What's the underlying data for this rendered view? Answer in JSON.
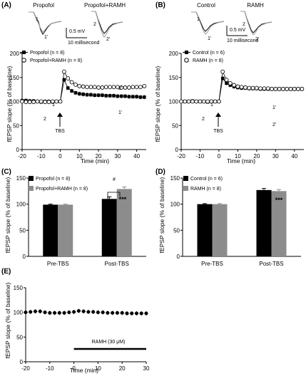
{
  "panel_labels": [
    "(A)",
    "(B)",
    "(C)",
    "(D)",
    "(E)"
  ],
  "traces": {
    "A": {
      "conditions": [
        "Propofol",
        "Propofol+RAMH"
      ],
      "left_labels": [
        "1",
        "1'"
      ],
      "right_labels": [
        "2",
        "2'"
      ],
      "scale_v": "0.5 mV",
      "scale_t": "10 millisecond"
    },
    "B": {
      "conditions": [
        "Control",
        "RAMH"
      ],
      "left_labels": [
        "1",
        "1'"
      ],
      "right_labels": [
        "2",
        "2'"
      ],
      "scale_v": "0.5 mV",
      "scale_t": "10 millisecond"
    }
  },
  "annotations": {
    "tbs": "TBS",
    "A_mark_1": "1",
    "A_mark_2": "2",
    "A_mark_2p": "2'",
    "A_mark_1p": "1'",
    "B_mark_1": "1",
    "B_mark_2": "2",
    "B_mark_1p": "1'",
    "B_mark_2p": "2'",
    "C_sig_left": "**",
    "C_sig_right": "***",
    "C_bracket": "#",
    "D_sig_left": "***",
    "D_sig_right": "***",
    "E_drug": "RAMH (30 μM)"
  },
  "colors": {
    "black": "#000000",
    "grey": "#8c8c8c",
    "light_grey": "#b8b8b8"
  },
  "chart_data": [
    {
      "id": "A",
      "type": "line",
      "xlabel": "Time (min)",
      "ylabel": "fEPSP slope (% of baseline)",
      "xlim": [
        -20,
        45
      ],
      "ylim": [
        0,
        200
      ],
      "xticks": [
        -20,
        -10,
        0,
        10,
        20,
        30,
        40
      ],
      "yticks": [
        0,
        50,
        100,
        150,
        200
      ],
      "legend": "top-left",
      "series": [
        {
          "name": "Propofol (n = 8)",
          "marker": "filled-square",
          "x": [
            -20,
            -18,
            -16,
            -14,
            -12,
            -10,
            -8,
            -6,
            -4,
            -2,
            0,
            2,
            4,
            6,
            8,
            10,
            12,
            14,
            16,
            18,
            20,
            22,
            24,
            26,
            28,
            30,
            32,
            34,
            36,
            38,
            40,
            42,
            44
          ],
          "y": [
            102,
            102,
            101,
            101,
            100,
            99,
            100,
            100,
            99,
            100,
            100,
            145,
            128,
            122,
            118,
            116,
            115,
            114,
            114,
            113,
            113,
            113,
            112,
            112,
            112,
            111,
            111,
            111,
            110,
            110,
            110,
            109,
            109
          ]
        },
        {
          "name": "Propofol+RAMH (n = 8)",
          "marker": "open-circle",
          "x": [
            -20,
            -18,
            -16,
            -14,
            -12,
            -10,
            -8,
            -6,
            -4,
            -2,
            0,
            2,
            4,
            6,
            8,
            10,
            12,
            14,
            16,
            18,
            20,
            22,
            24,
            26,
            28,
            30,
            32,
            34,
            36,
            38,
            40,
            42,
            44
          ],
          "y": [
            100,
            99,
            99,
            99,
            100,
            100,
            99,
            99,
            100,
            100,
            100,
            162,
            148,
            140,
            135,
            132,
            131,
            130,
            130,
            130,
            129,
            129,
            130,
            130,
            130,
            130,
            129,
            129,
            129,
            130,
            130,
            130,
            132
          ]
        }
      ]
    },
    {
      "id": "B",
      "type": "line",
      "xlabel": "Time (min)",
      "ylabel": "fEPSP slope (% of baseline)",
      "xlim": [
        -20,
        45
      ],
      "ylim": [
        0,
        200
      ],
      "xticks": [
        -20,
        -10,
        0,
        10,
        20,
        30,
        40
      ],
      "yticks": [
        0,
        50,
        100,
        150,
        200
      ],
      "legend": "top-left",
      "series": [
        {
          "name": "Control (n = 6)",
          "marker": "filled-square",
          "x": [
            -20,
            -18,
            -16,
            -14,
            -12,
            -10,
            -8,
            -6,
            -4,
            -2,
            0,
            2,
            4,
            6,
            8,
            10,
            12,
            14,
            16,
            18,
            20,
            22,
            24,
            26,
            28,
            30,
            32,
            34,
            36,
            38,
            40,
            42,
            44
          ],
          "y": [
            100,
            100,
            100,
            101,
            100,
            100,
            100,
            99,
            100,
            100,
            100,
            148,
            138,
            134,
            131,
            129,
            128,
            128,
            127,
            127,
            127,
            126,
            126,
            126,
            126,
            126,
            126,
            126,
            126,
            126,
            126,
            126,
            126
          ]
        },
        {
          "name": "RAMH (n = 8)",
          "marker": "open-circle",
          "x": [
            -20,
            -18,
            -16,
            -14,
            -12,
            -10,
            -8,
            -6,
            -4,
            -2,
            0,
            2,
            4,
            6,
            8,
            10,
            12,
            14,
            16,
            18,
            20,
            22,
            24,
            26,
            28,
            30,
            32,
            34,
            36,
            38,
            40,
            42,
            44
          ],
          "y": [
            100,
            100,
            100,
            100,
            100,
            100,
            100,
            100,
            100,
            100,
            100,
            162,
            145,
            138,
            134,
            131,
            130,
            129,
            128,
            128,
            128,
            127,
            127,
            127,
            126,
            126,
            126,
            126,
            126,
            126,
            126,
            126,
            126
          ]
        }
      ]
    },
    {
      "id": "C",
      "type": "bar",
      "ylabel": "fEPSP slope (% of baseline)",
      "categories": [
        "Pre-TBS",
        "Post-TBS"
      ],
      "ylim": [
        0,
        150
      ],
      "yticks": [
        0,
        50,
        100,
        150
      ],
      "legend": "top-left",
      "series": [
        {
          "name": "Propofol (n = 8)",
          "color": "#000000",
          "values": [
            99,
            110
          ],
          "errors": [
            1,
            4
          ]
        },
        {
          "name": "Propofol+RAMH (n = 8)",
          "color": "#8c8c8c",
          "values": [
            99,
            129
          ],
          "errors": [
            1,
            4
          ]
        }
      ]
    },
    {
      "id": "D",
      "type": "bar",
      "ylabel": "fEPSP slope (% of baseline)",
      "categories": [
        "Pre-TBS",
        "Post-TBS"
      ],
      "ylim": [
        0,
        150
      ],
      "yticks": [
        0,
        50,
        100,
        150
      ],
      "legend": "top-left",
      "series": [
        {
          "name": "Control (n = 6)",
          "color": "#000000",
          "values": [
            100,
            127
          ],
          "errors": [
            1,
            3
          ]
        },
        {
          "name": "RAMH (n = 8)",
          "color": "#8c8c8c",
          "values": [
            100,
            125
          ],
          "errors": [
            1,
            3
          ]
        }
      ]
    },
    {
      "id": "E",
      "type": "line",
      "xlabel": "Time (min)",
      "ylabel": "fEPSP slope (% of baseline)",
      "xlim": [
        -20,
        30
      ],
      "ylim": [
        0,
        150
      ],
      "xticks": [
        -20,
        -10,
        0,
        10,
        20,
        30
      ],
      "yticks": [
        0,
        50,
        100,
        150
      ],
      "drug_bar": [
        0,
        30
      ],
      "series": [
        {
          "name": "",
          "marker": "filled-circle",
          "x": [
            -20,
            -18,
            -16,
            -14,
            -12,
            -10,
            -8,
            -6,
            -4,
            -2,
            0,
            2,
            4,
            6,
            8,
            10,
            12,
            14,
            16,
            18,
            20,
            22,
            24,
            26,
            28,
            30
          ],
          "y": [
            100,
            101,
            102,
            102,
            100,
            99,
            99,
            99,
            99,
            100,
            101,
            103,
            102,
            101,
            101,
            100,
            100,
            99,
            99,
            99,
            99,
            98,
            98,
            98,
            98,
            98
          ]
        }
      ]
    }
  ]
}
